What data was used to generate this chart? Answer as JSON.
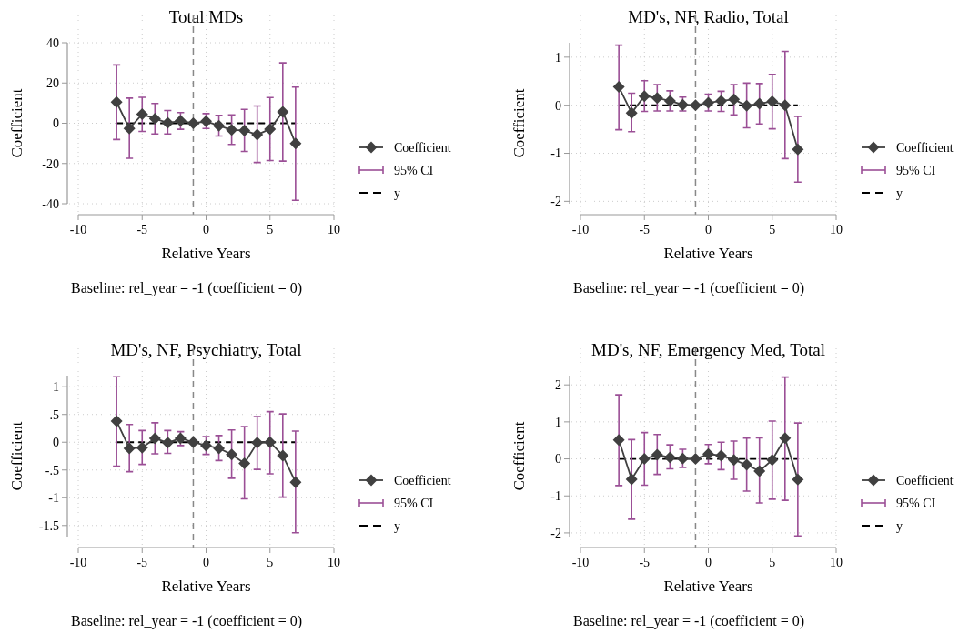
{
  "chart_data": [
    {
      "type": "line",
      "title": "Total MDs",
      "xlabel": "Relative Years",
      "ylabel": "Coefficient",
      "annotations": [
        "Baseline: rel_year = -1 (coefficient = 0)"
      ],
      "x": [
        -7,
        -6,
        -5,
        -4,
        -3,
        -2,
        -1,
        0,
        1,
        2,
        3,
        4,
        5,
        6,
        7
      ],
      "xlim": [
        -10,
        10
      ],
      "xticks": [
        -10,
        -5,
        0,
        5,
        10
      ],
      "ylim": [
        -40,
        40
      ],
      "yticks": [
        -40,
        -20,
        0,
        20,
        40
      ],
      "grid": true,
      "legend": "right",
      "ref_lines": [
        {
          "axis": "x",
          "value": -1,
          "color": "#888888",
          "line_style": "dashed"
        }
      ],
      "series": [
        {
          "name": "Coefficient",
          "type": "line",
          "color": "#404040",
          "marker": "diamond",
          "values": [
            10.5,
            -2.6,
            4.5,
            2.3,
            0.2,
            1.2,
            0,
            1.0,
            -1.2,
            -3.3,
            -3.6,
            -5.7,
            -2.9,
            5.7,
            -10.1
          ],
          "errors": [
            [
              -8.1,
              29
            ],
            [
              -17.4,
              12.5
            ],
            [
              -4.1,
              12.9
            ],
            [
              -5.3,
              9.8
            ],
            [
              -5.3,
              6.3
            ],
            [
              -3.0,
              5.3
            ],
            null,
            [
              -2.6,
              4.8
            ],
            [
              -6.3,
              3.9
            ],
            [
              -10.5,
              4.2
            ],
            [
              -14,
              6.9
            ],
            [
              -19.5,
              8.6
            ],
            [
              -18.5,
              12.8
            ],
            [
              -18.8,
              30
            ],
            [
              -38.3,
              18
            ]
          ]
        },
        {
          "name": "95% CI",
          "type": "scatter",
          "color": "#9b4f96",
          "values": [
            null,
            null,
            null,
            null,
            null,
            null,
            null,
            null,
            null,
            null,
            null,
            null,
            null,
            null,
            null
          ]
        },
        {
          "name": "y",
          "type": "line",
          "color": "#000000",
          "marker": "none",
          "line_style": "dashed",
          "values": [
            0,
            0,
            0,
            0,
            0,
            0,
            0,
            0,
            0,
            0,
            0,
            0,
            0,
            0,
            0
          ]
        }
      ]
    },
    {
      "type": "line",
      "title": "MD's, NF, Radio, Total",
      "xlabel": "Relative Years",
      "ylabel": "Coefficient",
      "annotations": [
        "Baseline: rel_year = -1 (coefficient = 0)"
      ],
      "x": [
        -7,
        -6,
        -5,
        -4,
        -3,
        -2,
        -1,
        0,
        1,
        2,
        3,
        4,
        5,
        6,
        7
      ],
      "xlim": [
        -10,
        10
      ],
      "xticks": [
        -10,
        -5,
        0,
        5,
        10
      ],
      "ylim": [
        -2.05,
        1.3
      ],
      "yticks": [
        -2,
        -1,
        0,
        1
      ],
      "grid": true,
      "legend": "right",
      "ref_lines": [
        {
          "axis": "x",
          "value": -1,
          "color": "#888888",
          "line_style": "dashed"
        }
      ],
      "series": [
        {
          "name": "Coefficient",
          "type": "line",
          "color": "#404040",
          "marker": "diamond",
          "values": [
            0.38,
            -0.16,
            0.19,
            0.15,
            0.09,
            0.01,
            0,
            0.05,
            0.09,
            0.12,
            -0.01,
            0.03,
            0.08,
            0,
            -0.92
          ],
          "errors": [
            [
              -0.51,
              1.25
            ],
            [
              -0.55,
              0.25
            ],
            [
              -0.13,
              0.51
            ],
            [
              -0.12,
              0.43
            ],
            [
              -0.12,
              0.3
            ],
            [
              -0.12,
              0.17
            ],
            null,
            [
              -0.12,
              0.23
            ],
            [
              -0.13,
              0.29
            ],
            [
              -0.2,
              0.43
            ],
            [
              -0.47,
              0.46
            ],
            [
              -0.39,
              0.45
            ],
            [
              -0.49,
              0.64
            ],
            [
              -1.11,
              1.12
            ],
            [
              -1.6,
              -0.23
            ]
          ]
        },
        {
          "name": "95% CI",
          "type": "scatter",
          "color": "#9b4f96",
          "values": [
            null,
            null,
            null,
            null,
            null,
            null,
            null,
            null,
            null,
            null,
            null,
            null,
            null,
            null,
            null
          ]
        },
        {
          "name": "y",
          "type": "line",
          "color": "#000000",
          "marker": "none",
          "line_style": "dashed",
          "values": [
            0,
            0,
            0,
            0,
            0,
            0,
            0,
            0,
            0,
            0,
            0,
            0,
            0,
            0,
            0
          ]
        }
      ]
    },
    {
      "type": "line",
      "title": "MD's, NF, Psychiatry, Total",
      "xlabel": "Relative Years",
      "ylabel": "Coefficient",
      "annotations": [
        "Baseline: rel_year = -1 (coefficient = 0)"
      ],
      "x": [
        -7,
        -6,
        -5,
        -4,
        -3,
        -2,
        -1,
        0,
        1,
        2,
        3,
        4,
        5,
        6,
        7
      ],
      "xlim": [
        -10,
        10
      ],
      "xticks": [
        -10,
        -5,
        0,
        5,
        10
      ],
      "ylim": [
        -1.7,
        1.2
      ],
      "yticks": [
        -1.5,
        -1,
        {
          "value": -0.5,
          "label": "-.5"
        },
        0,
        {
          "value": 0.5,
          "label": ".5"
        },
        1
      ],
      "grid": true,
      "legend": "right",
      "ref_lines": [
        {
          "axis": "x",
          "value": -1,
          "color": "#888888",
          "line_style": "dashed"
        }
      ],
      "series": [
        {
          "name": "Coefficient",
          "type": "line",
          "color": "#404040",
          "marker": "diamond",
          "values": [
            0.38,
            -0.11,
            -0.1,
            0.07,
            -0.01,
            0.07,
            0,
            -0.06,
            -0.11,
            -0.22,
            -0.38,
            -0.01,
            0,
            -0.24,
            -0.72
          ],
          "errors": [
            [
              -0.43,
              1.18
            ],
            [
              -0.53,
              0.32
            ],
            [
              -0.4,
              0.21
            ],
            [
              -0.21,
              0.35
            ],
            [
              -0.2,
              0.21
            ],
            [
              -0.06,
              0.19
            ],
            null,
            [
              -0.22,
              0.1
            ],
            [
              -0.33,
              0.12
            ],
            [
              -0.65,
              0.22
            ],
            [
              -1.02,
              0.28
            ],
            [
              -0.49,
              0.46
            ],
            [
              -0.57,
              0.55
            ],
            [
              -0.99,
              0.51
            ],
            [
              -1.63,
              0.2
            ]
          ]
        },
        {
          "name": "95% CI",
          "type": "scatter",
          "color": "#9b4f96",
          "values": [
            null,
            null,
            null,
            null,
            null,
            null,
            null,
            null,
            null,
            null,
            null,
            null,
            null,
            null,
            null
          ]
        },
        {
          "name": "y",
          "type": "line",
          "color": "#000000",
          "marker": "none",
          "line_style": "dashed",
          "values": [
            0,
            0,
            0,
            0,
            0,
            0,
            0,
            0,
            0,
            0,
            0,
            0,
            0,
            0,
            0
          ]
        }
      ]
    },
    {
      "type": "line",
      "title": "MD's, NF, Emergency Med, Total",
      "xlabel": "Relative Years",
      "ylabel": "Coefficient",
      "annotations": [
        "Baseline: rel_year = -1 (coefficient = 0)"
      ],
      "x": [
        -7,
        -6,
        -5,
        -4,
        -3,
        -2,
        -1,
        0,
        1,
        2,
        3,
        4,
        5,
        6,
        7
      ],
      "xlim": [
        -10,
        10
      ],
      "xticks": [
        -10,
        -5,
        0,
        5,
        10
      ],
      "ylim": [
        -2.1,
        2.25
      ],
      "yticks": [
        -2,
        -1,
        0,
        1,
        2
      ],
      "grid": true,
      "legend": "right",
      "ref_lines": [
        {
          "axis": "x",
          "value": -1,
          "color": "#888888",
          "line_style": "dashed"
        }
      ],
      "series": [
        {
          "name": "Coefficient",
          "type": "line",
          "color": "#404040",
          "marker": "diamond",
          "values": [
            0.51,
            -0.55,
            0,
            0.11,
            0.04,
            0.01,
            0,
            0.13,
            0.09,
            -0.03,
            -0.16,
            -0.33,
            -0.03,
            0.56,
            -0.56
          ],
          "errors": [
            [
              -0.72,
              1.73
            ],
            [
              -1.63,
              0.52
            ],
            [
              -0.71,
              0.71
            ],
            [
              -0.42,
              0.66
            ],
            [
              -0.27,
              0.38
            ],
            [
              -0.23,
              0.26
            ],
            null,
            [
              -0.13,
              0.39
            ],
            [
              -0.29,
              0.45
            ],
            [
              -0.55,
              0.48
            ],
            [
              -0.87,
              0.56
            ],
            [
              -1.19,
              0.57
            ],
            [
              -1.09,
              1.02
            ],
            [
              -1.12,
              2.21
            ],
            [
              -2.08,
              0.97
            ]
          ]
        },
        {
          "name": "95% CI",
          "type": "scatter",
          "color": "#9b4f96",
          "values": [
            null,
            null,
            null,
            null,
            null,
            null,
            null,
            null,
            null,
            null,
            null,
            null,
            null,
            null,
            null
          ]
        },
        {
          "name": "y",
          "type": "line",
          "color": "#000000",
          "marker": "none",
          "line_style": "dashed",
          "values": [
            0,
            0,
            0,
            0,
            0,
            0,
            0,
            0,
            0,
            0,
            0,
            0,
            0,
            0,
            0
          ]
        }
      ]
    }
  ]
}
